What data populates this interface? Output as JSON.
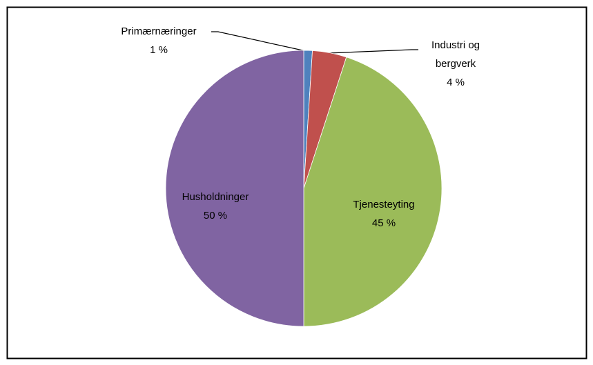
{
  "chart_data": {
    "type": "pie",
    "categories": [
      "Primærnæringer",
      "Industri og bergverk",
      "Tjenesteyting",
      "Husholdninger"
    ],
    "values": [
      1,
      4,
      45,
      50
    ],
    "value_labels": [
      "1 %",
      "4 %",
      "45 %",
      "50 %"
    ],
    "colors": [
      "#4f81bd",
      "#c0504d",
      "#9bbb59",
      "#8064a2"
    ]
  }
}
